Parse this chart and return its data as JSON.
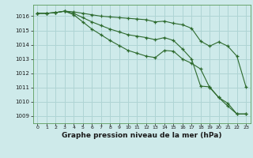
{
  "title": "Graphe pression niveau de la mer (hPa)",
  "bg_color": "#ceeaea",
  "grid_color": "#afd4d4",
  "line_color": "#2d6a2d",
  "x_labels": [
    "0",
    "1",
    "2",
    "3",
    "4",
    "5",
    "6",
    "7",
    "8",
    "9",
    "10",
    "11",
    "12",
    "13",
    "14",
    "15",
    "16",
    "17",
    "18",
    "19",
    "20",
    "21",
    "22",
    "23"
  ],
  "ylim": [
    1008.5,
    1016.8
  ],
  "yticks": [
    1009,
    1010,
    1011,
    1012,
    1013,
    1014,
    1015,
    1016
  ],
  "line1": [
    1016.2,
    1016.2,
    1016.25,
    1016.35,
    1016.3,
    1016.2,
    1016.1,
    1016.0,
    1015.95,
    1015.9,
    1015.85,
    1015.8,
    1015.75,
    1015.6,
    1015.65,
    1015.5,
    1015.4,
    1015.15,
    1014.25,
    1013.9,
    1014.2,
    1013.9,
    1013.2,
    1011.05
  ],
  "line2": [
    1016.2,
    1016.2,
    1016.25,
    1016.35,
    1016.1,
    1015.6,
    1015.1,
    1014.7,
    1014.3,
    1013.95,
    1013.6,
    1013.4,
    1013.2,
    1013.1,
    1013.6,
    1013.55,
    1013.0,
    1012.7,
    1012.3,
    1011.0,
    1010.3,
    1009.7,
    1009.15,
    1009.15
  ],
  "line3": [
    1016.2,
    1016.2,
    1016.25,
    1016.35,
    1016.2,
    1015.9,
    1015.6,
    1015.35,
    1015.1,
    1014.9,
    1014.7,
    1014.6,
    1014.5,
    1014.35,
    1014.5,
    1014.3,
    1013.7,
    1013.0,
    1011.1,
    1011.05,
    1010.3,
    1009.9,
    1009.15,
    1009.15
  ]
}
